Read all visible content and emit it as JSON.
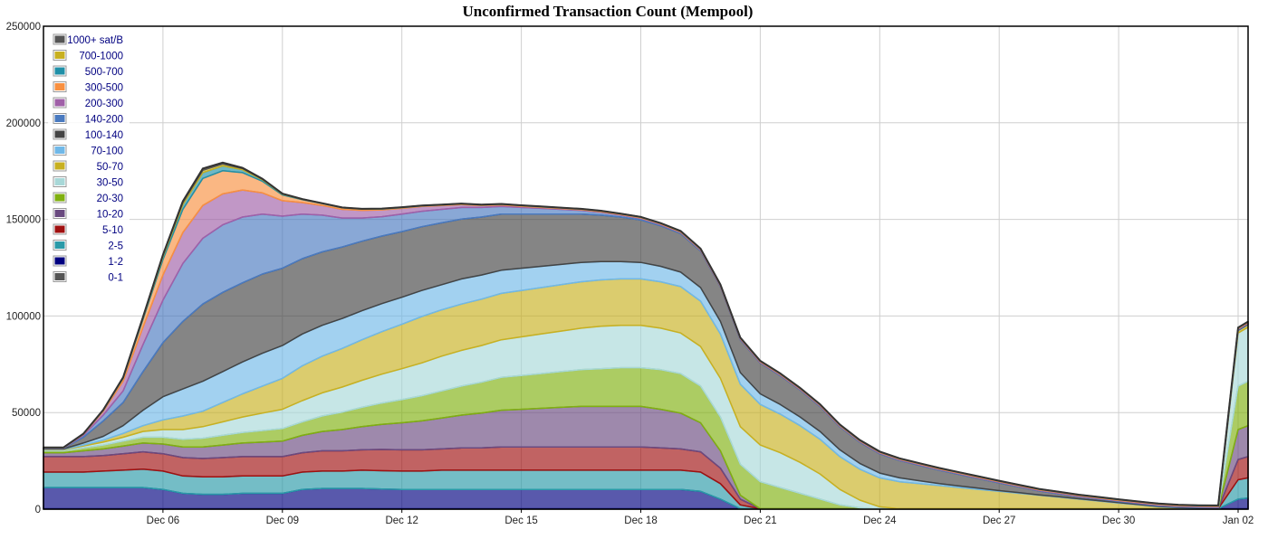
{
  "chart_data": {
    "type": "area",
    "stacked": true,
    "title": "Unconfirmed Transaction Count (Mempool)",
    "xlabel": "",
    "ylabel": "",
    "x_start": "Dec 03",
    "x_end": "Jan 02",
    "x_ticks": [
      "Dec 06",
      "Dec 09",
      "Dec 12",
      "Dec 15",
      "Dec 18",
      "Dec 21",
      "Dec 24",
      "Dec 27",
      "Dec 30",
      "Jan 02"
    ],
    "y_ticks": [
      "0",
      "50000",
      "100000",
      "150000",
      "200000",
      "250000"
    ],
    "ylim": [
      0,
      250000
    ],
    "grid": true,
    "legend_position": "top-left",
    "x": [
      0,
      0.5,
      1,
      1.5,
      2,
      2.5,
      3,
      3.5,
      4,
      4.5,
      5,
      5.5,
      6,
      6.5,
      7,
      7.5,
      8,
      8.5,
      9,
      9.5,
      10,
      10.5,
      11,
      11.5,
      12,
      12.5,
      13,
      13.5,
      14,
      14.5,
      15,
      15.5,
      16,
      16.5,
      17,
      17.5,
      18,
      18.5,
      19,
      19.5,
      20,
      20.5,
      21,
      21.5,
      22,
      22.5,
      23,
      23.5,
      24,
      24.5,
      25,
      25.5,
      26,
      26.5,
      27,
      27.5,
      28,
      28.5,
      29,
      29.5,
      30,
      30.25
    ],
    "series": [
      {
        "name": "0-1",
        "color": "#555555",
        "values": [
          200,
          200,
          200,
          200,
          200,
          200,
          200,
          200,
          200,
          200,
          200,
          200,
          200,
          200,
          200,
          200,
          200,
          200,
          200,
          200,
          200,
          200,
          200,
          200,
          200,
          200,
          200,
          200,
          200,
          200,
          200,
          200,
          200,
          200,
          200,
          200,
          200,
          200,
          200,
          200,
          200,
          200,
          200,
          200,
          200,
          200,
          200,
          200,
          200,
          200,
          200,
          200,
          200,
          200,
          200,
          200,
          200,
          200,
          200,
          200,
          200,
          200
        ]
      },
      {
        "name": "1-2",
        "color": "#000080",
        "values": [
          11000,
          11000,
          11000,
          11000,
          11000,
          11000,
          10000,
          8000,
          7500,
          7500,
          8000,
          8000,
          8000,
          10000,
          10500,
          10500,
          10500,
          10200,
          10000,
          10000,
          10000,
          10000,
          10000,
          10000,
          10000,
          10000,
          10000,
          10000,
          10000,
          10000,
          10000,
          10000,
          10000,
          9000,
          5000,
          0,
          0,
          0,
          0,
          0,
          0,
          0,
          0,
          0,
          0,
          0,
          0,
          0,
          0,
          0,
          0,
          0,
          0,
          0,
          0,
          0,
          0,
          0,
          0,
          0,
          5000,
          5500
        ]
      },
      {
        "name": "2-5",
        "color": "#2a9aa8",
        "values": [
          8000,
          8000,
          8000,
          8500,
          9000,
          9500,
          9500,
          9000,
          9000,
          9000,
          9000,
          9000,
          9000,
          9000,
          9000,
          9000,
          9500,
          9500,
          9500,
          9500,
          10000,
          10000,
          10000,
          10000,
          10000,
          10000,
          10000,
          10000,
          10000,
          10000,
          10000,
          10000,
          10000,
          10000,
          8000,
          2000,
          0,
          0,
          0,
          0,
          0,
          0,
          0,
          0,
          0,
          0,
          0,
          0,
          0,
          0,
          0,
          0,
          0,
          0,
          0,
          0,
          0,
          0,
          0,
          0,
          10000,
          10500
        ]
      },
      {
        "name": "5-10",
        "color": "#a01010",
        "values": [
          8000,
          8000,
          8000,
          8000,
          8500,
          9000,
          9000,
          9500,
          9500,
          10000,
          10000,
          10000,
          10000,
          10000,
          10500,
          10500,
          10500,
          11000,
          11000,
          11000,
          11000,
          11500,
          11500,
          12000,
          12000,
          12000,
          12000,
          12000,
          12000,
          12000,
          12000,
          11500,
          11000,
          10500,
          8000,
          3000,
          0,
          0,
          0,
          0,
          0,
          0,
          0,
          0,
          0,
          0,
          0,
          0,
          0,
          0,
          0,
          0,
          0,
          0,
          0,
          0,
          0,
          0,
          0,
          0,
          10500,
          11000
        ]
      },
      {
        "name": "10-20",
        "color": "#6a4a80",
        "values": [
          2000,
          2000,
          3000,
          3500,
          4000,
          4500,
          5000,
          5500,
          6000,
          6500,
          7000,
          7500,
          8000,
          9000,
          10000,
          11000,
          12000,
          13000,
          14000,
          15000,
          16000,
          17000,
          18000,
          19000,
          19500,
          20000,
          20500,
          21000,
          21000,
          21000,
          21000,
          20000,
          18500,
          15000,
          9000,
          2000,
          0,
          0,
          0,
          0,
          0,
          0,
          0,
          0,
          0,
          0,
          0,
          0,
          0,
          0,
          0,
          0,
          0,
          0,
          0,
          0,
          0,
          0,
          0,
          0,
          15500,
          16000
        ]
      },
      {
        "name": "20-30",
        "color": "#80b010",
        "values": [
          1000,
          1000,
          1500,
          2000,
          2500,
          3000,
          3500,
          4000,
          4500,
          5000,
          5500,
          6000,
          6500,
          7000,
          8000,
          9000,
          10000,
          11000,
          12000,
          13000,
          14000,
          15000,
          16000,
          17000,
          17500,
          18000,
          18500,
          19000,
          19500,
          20000,
          20000,
          20500,
          20500,
          19000,
          17500,
          16000,
          14000,
          11000,
          8000,
          5000,
          2000,
          500,
          0,
          0,
          0,
          0,
          0,
          0,
          0,
          0,
          0,
          0,
          0,
          0,
          0,
          0,
          0,
          0,
          0,
          0,
          22500,
          23000
        ]
      },
      {
        "name": "30-50",
        "color": "#a8d8d8",
        "values": [
          500,
          500,
          1000,
          1500,
          2000,
          3000,
          4000,
          5000,
          6000,
          7000,
          8000,
          9000,
          10000,
          11000,
          12000,
          13000,
          14000,
          15000,
          16000,
          17000,
          18000,
          18500,
          19000,
          19500,
          20000,
          20500,
          21000,
          21500,
          22000,
          22000,
          22000,
          21500,
          21000,
          20500,
          20000,
          19500,
          19000,
          18000,
          16000,
          13000,
          8000,
          4000,
          1000,
          0,
          0,
          0,
          0,
          0,
          0,
          0,
          0,
          0,
          0,
          0,
          0,
          0,
          0,
          0,
          0,
          0,
          27500,
          28000
        ]
      },
      {
        "name": "50-70",
        "color": "#c8b020",
        "values": [
          300,
          300,
          500,
          1000,
          2000,
          3000,
          5000,
          7000,
          8000,
          10000,
          12000,
          14000,
          16000,
          18000,
          19000,
          20000,
          21000,
          22000,
          23000,
          24000,
          24000,
          24000,
          24000,
          24000,
          24000,
          24000,
          24000,
          24000,
          24000,
          24000,
          24000,
          24000,
          24000,
          23500,
          23000,
          22000,
          21000,
          20000,
          19000,
          18000,
          17000,
          16000,
          15000,
          14000,
          13000,
          12000,
          11000,
          10000,
          9000,
          8000,
          7000,
          6000,
          5000,
          4000,
          3000,
          2000,
          1000,
          500,
          200,
          100,
          1200,
          1300
        ]
      },
      {
        "name": "70-100",
        "color": "#70b8e8",
        "values": [
          200,
          200,
          1000,
          2000,
          4000,
          8000,
          12000,
          14000,
          15500,
          16000,
          16500,
          17000,
          17000,
          16500,
          16000,
          15500,
          15000,
          14500,
          14000,
          13500,
          13000,
          13000,
          12500,
          12000,
          11500,
          11000,
          10500,
          10000,
          9500,
          9000,
          8500,
          8000,
          7500,
          7000,
          6500,
          6000,
          5500,
          5000,
          4500,
          4000,
          3500,
          3000,
          2500,
          2000,
          1500,
          1000,
          800,
          600,
          400,
          300,
          200,
          200,
          200,
          200,
          200,
          200,
          200,
          200,
          200,
          200,
          200,
          200
        ]
      },
      {
        "name": "100-140",
        "color": "#444444",
        "values": [
          300,
          300,
          3000,
          8000,
          12000,
          20000,
          28000,
          35000,
          40000,
          41000,
          41000,
          41000,
          40000,
          39000,
          38000,
          37000,
          36000,
          35000,
          34000,
          33000,
          32000,
          31000,
          30000,
          29000,
          28000,
          27000,
          26000,
          25000,
          24000,
          23000,
          22000,
          21000,
          20000,
          19000,
          18000,
          17000,
          16000,
          15000,
          14000,
          13000,
          12000,
          11000,
          10000,
          9000,
          8000,
          7000,
          6000,
          5000,
          4000,
          3000,
          2000,
          1500,
          1000,
          800,
          600,
          500,
          400,
          300,
          300,
          300,
          300,
          300
        ]
      },
      {
        "name": "140-200",
        "color": "#4a7ac0",
        "values": [
          100,
          100,
          1000,
          3000,
          6000,
          14000,
          22000,
          30000,
          34000,
          35000,
          34000,
          31000,
          27000,
          23000,
          19000,
          15000,
          12000,
          10000,
          9000,
          8000,
          7000,
          6000,
          5000,
          4000,
          3500,
          3000,
          2500,
          2000,
          1500,
          1000,
          800,
          600,
          500,
          400,
          300,
          300,
          300,
          300,
          300,
          300,
          300,
          300,
          300,
          300,
          300,
          300,
          300,
          300,
          300,
          300,
          300,
          300,
          300,
          300,
          300,
          300,
          300,
          300,
          300,
          300,
          300,
          300
        ]
      },
      {
        "name": "200-300",
        "color": "#a060a8",
        "values": [
          100,
          100,
          500,
          2000,
          5000,
          9000,
          13000,
          16000,
          17000,
          16000,
          14000,
          11000,
          8000,
          6000,
          5000,
          4500,
          4000,
          3500,
          3000,
          2500,
          2000,
          1500,
          1000,
          800,
          600,
          500,
          400,
          300,
          300,
          300,
          300,
          300,
          300,
          300,
          300,
          300,
          300,
          300,
          300,
          300,
          300,
          300,
          300,
          300,
          300,
          300,
          300,
          300,
          300,
          300,
          300,
          300,
          300,
          300,
          300,
          300,
          300,
          300,
          300,
          300,
          300,
          300
        ]
      },
      {
        "name": "300-500",
        "color": "#f89040",
        "values": [
          100,
          100,
          200,
          500,
          1500,
          4000,
          8000,
          12000,
          14000,
          12000,
          9000,
          6000,
          3000,
          1500,
          1000,
          800,
          600,
          500,
          400,
          300,
          300,
          300,
          300,
          300,
          300,
          300,
          300,
          300,
          300,
          300,
          300,
          300,
          300,
          300,
          300,
          300,
          300,
          300,
          300,
          300,
          300,
          300,
          300,
          300,
          300,
          300,
          300,
          300,
          300,
          300,
          300,
          300,
          300,
          300,
          300,
          300,
          300,
          300,
          300,
          300,
          300,
          300
        ]
      },
      {
        "name": "500-700",
        "color": "#2090a8",
        "values": [
          50,
          50,
          50,
          100,
          300,
          800,
          1500,
          2500,
          3000,
          2500,
          1500,
          800,
          400,
          200,
          100,
          100,
          100,
          100,
          100,
          100,
          100,
          100,
          100,
          100,
          100,
          100,
          100,
          100,
          100,
          100,
          100,
          100,
          100,
          100,
          100,
          100,
          100,
          100,
          100,
          100,
          100,
          100,
          100,
          100,
          100,
          100,
          100,
          100,
          100,
          100,
          100,
          100,
          100,
          100,
          100,
          100,
          100,
          100,
          100,
          100,
          100,
          100
        ]
      },
      {
        "name": "700-1000",
        "color": "#c8b020",
        "values": [
          50,
          50,
          50,
          50,
          100,
          300,
          600,
          1000,
          1200,
          1000,
          600,
          300,
          150,
          100,
          50,
          50,
          50,
          50,
          50,
          50,
          50,
          50,
          50,
          50,
          50,
          50,
          50,
          50,
          50,
          50,
          50,
          50,
          50,
          50,
          50,
          50,
          50,
          50,
          50,
          50,
          50,
          50,
          50,
          50,
          50,
          50,
          50,
          50,
          50,
          50,
          50,
          50,
          50,
          50,
          50,
          50,
          50,
          50,
          50,
          50,
          50,
          50
        ]
      },
      {
        "name": "1000+ sat/B",
        "color": "#555555",
        "values": [
          50,
          50,
          50,
          50,
          100,
          200,
          400,
          700,
          900,
          700,
          400,
          200,
          100,
          50,
          50,
          50,
          50,
          50,
          50,
          50,
          50,
          50,
          50,
          50,
          50,
          50,
          50,
          50,
          50,
          50,
          50,
          50,
          50,
          50,
          50,
          50,
          50,
          50,
          50,
          50,
          50,
          50,
          50,
          50,
          50,
          50,
          50,
          50,
          50,
          50,
          50,
          50,
          50,
          50,
          50,
          50,
          50,
          50,
          50,
          50,
          50,
          50
        ]
      }
    ]
  }
}
